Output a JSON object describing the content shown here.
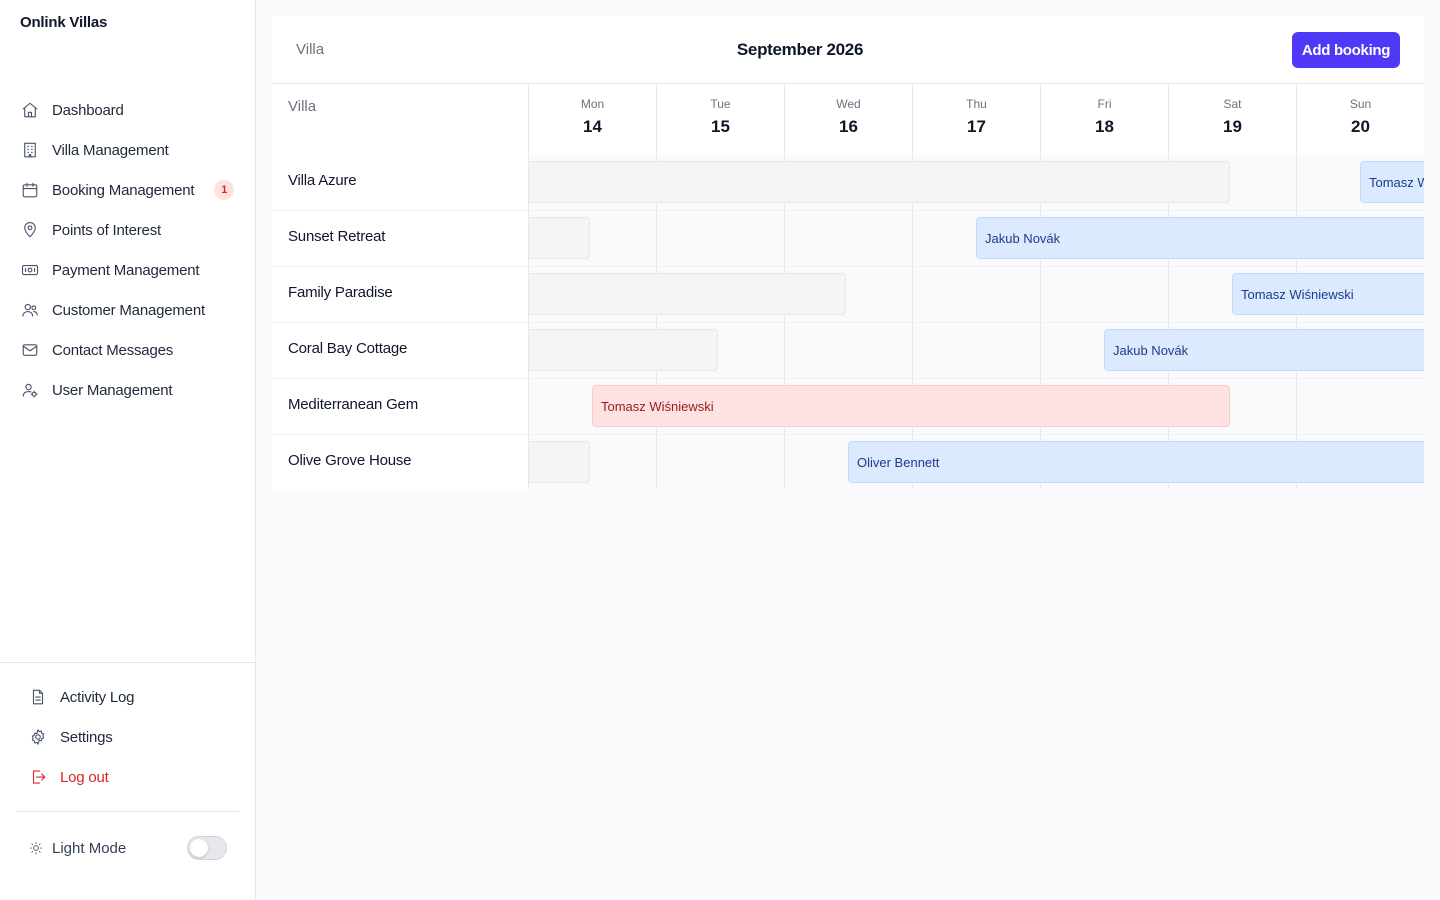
{
  "app": {
    "brand": "Onlink Villas"
  },
  "sidebar": {
    "items": [
      {
        "label": "Dashboard",
        "icon": "home-icon"
      },
      {
        "label": "Villa Management",
        "icon": "building-icon"
      },
      {
        "label": "Booking Management",
        "icon": "calendar-icon",
        "badge": "1"
      },
      {
        "label": "Points of Interest",
        "icon": "map-pin-icon"
      },
      {
        "label": "Payment Management",
        "icon": "banknote-icon"
      },
      {
        "label": "Customer Management",
        "icon": "users-icon"
      },
      {
        "label": "Contact Messages",
        "icon": "mail-icon"
      },
      {
        "label": "User Management",
        "icon": "user-cog-icon"
      }
    ],
    "bottom": [
      {
        "label": "Activity Log",
        "icon": "file-text-icon"
      },
      {
        "label": "Settings",
        "icon": "gear-icon"
      },
      {
        "label": "Log out",
        "icon": "logout-icon"
      }
    ],
    "mode": {
      "label": "Light Mode",
      "dark_enabled": false
    }
  },
  "calendar": {
    "filter_label": "Villa",
    "month": "September 2026",
    "add_button": "Add booking",
    "villa_column": "Villa",
    "days": [
      {
        "name": "Mon",
        "date": "14"
      },
      {
        "name": "Tue",
        "date": "15"
      },
      {
        "name": "Wed",
        "date": "16"
      },
      {
        "name": "Thu",
        "date": "17"
      },
      {
        "name": "Fri",
        "date": "18"
      },
      {
        "name": "Sat",
        "date": "19"
      },
      {
        "name": "Sun",
        "date": "20"
      }
    ],
    "villas": [
      {
        "name": "Villa Azure",
        "bookings": [
          {
            "guest": "",
            "status": "blocked",
            "start_day": -1,
            "end_day": 5.5
          },
          {
            "guest": "Tomasz Wiśniewski",
            "status": "confirmed",
            "start_day": 6.5,
            "end_day": 9
          }
        ]
      },
      {
        "name": "Sunset Retreat",
        "bookings": [
          {
            "guest": "",
            "status": "blocked",
            "start_day": -1,
            "end_day": 0.5
          },
          {
            "guest": "Jakub Novák",
            "status": "confirmed",
            "start_day": 3.5,
            "end_day": 9
          }
        ]
      },
      {
        "name": "Family Paradise",
        "bookings": [
          {
            "guest": "",
            "status": "blocked",
            "start_day": -1,
            "end_day": 2.5
          },
          {
            "guest": "Tomasz Wiśniewski",
            "status": "confirmed",
            "start_day": 5.5,
            "end_day": 9
          }
        ]
      },
      {
        "name": "Coral Bay Cottage",
        "bookings": [
          {
            "guest": "",
            "status": "blocked",
            "start_day": -1,
            "end_day": 1.5
          },
          {
            "guest": "Jakub Novák",
            "status": "confirmed",
            "start_day": 4.5,
            "end_day": 9
          }
        ]
      },
      {
        "name": "Mediterranean Gem",
        "bookings": [
          {
            "guest": "Tomasz Wiśniewski",
            "status": "cancelled",
            "start_day": 0.5,
            "end_day": 5.5
          }
        ]
      },
      {
        "name": "Olive Grove House",
        "bookings": [
          {
            "guest": "",
            "status": "blocked",
            "start_day": -1,
            "end_day": 0.5
          },
          {
            "guest": "Oliver Bennett",
            "status": "confirmed",
            "start_day": 2.5,
            "end_day": 9
          }
        ]
      }
    ]
  },
  "colors": {
    "accent": "#4f39f6",
    "danger": "#dc2626",
    "booking_blue": "#dbeafe",
    "booking_red": "#fee2e2"
  }
}
